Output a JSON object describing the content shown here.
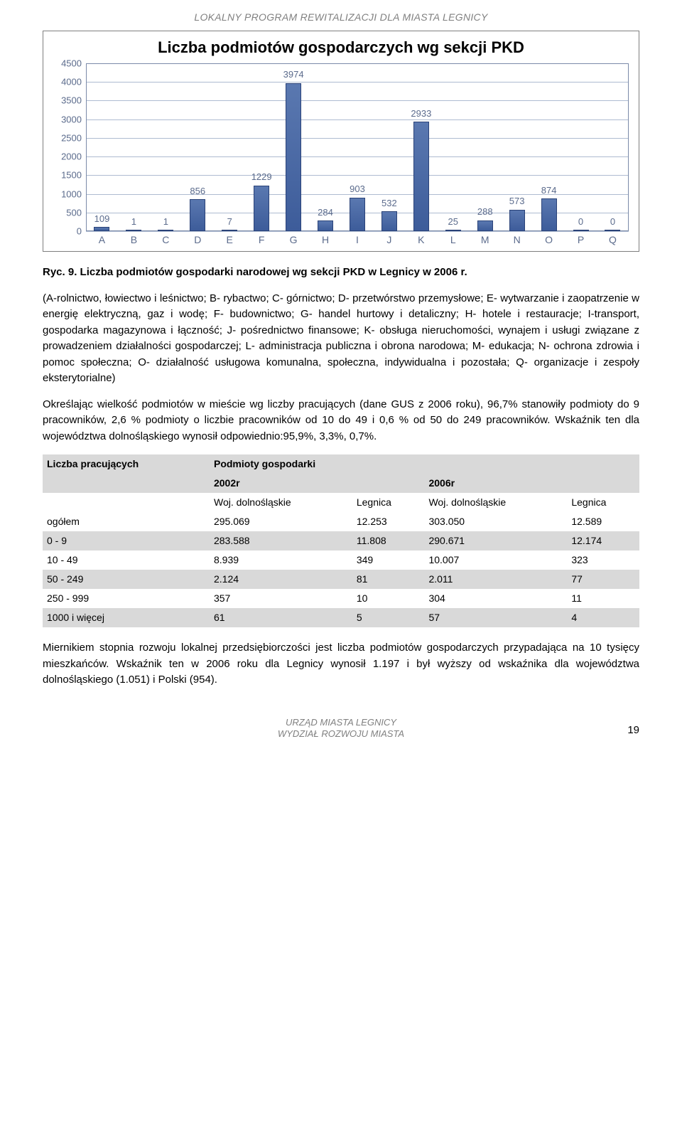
{
  "header": {
    "text": "LOKALNY PROGRAM REWITALIZACJI DLA MIASTA LEGNICY"
  },
  "chart": {
    "type": "bar",
    "title": "Liczba podmiotów gospodarczych wg sekcji PKD",
    "title_fontsize": 22,
    "categories": [
      "A",
      "B",
      "C",
      "D",
      "E",
      "F",
      "G",
      "H",
      "I",
      "J",
      "K",
      "L",
      "M",
      "N",
      "O",
      "P",
      "Q"
    ],
    "values": [
      109,
      1,
      1,
      856,
      7,
      1229,
      3974,
      284,
      903,
      532,
      2933,
      25,
      288,
      573,
      874,
      0,
      0
    ],
    "bar_color": "#3d5c9a",
    "bar_border": "#2a4278",
    "ymin": 0,
    "ymax": 4500,
    "ytick_step": 500,
    "yticks": [
      0,
      500,
      1000,
      1500,
      2000,
      2500,
      3000,
      3500,
      4000,
      4500
    ],
    "grid_color": "#aebbd1",
    "axis_label_color": "#5b6b8c",
    "axis_fontsize": 13,
    "background_color": "#ffffff"
  },
  "caption": "Ryc. 9. Liczba podmiotów gospodarki narodowej wg sekcji PKD w Legnicy w 2006 r.",
  "para1": "(A-rolnictwo, łowiectwo i leśnictwo; B- rybactwo; C- górnictwo; D- przetwórstwo przemysłowe; E- wytwarzanie i zaopatrzenie w energię elektryczną, gaz i wodę; F- budownictwo; G- handel hurtowy i detaliczny; H- hotele i restauracje; I-transport, gospodarka magazynowa i łączność; J- pośrednictwo finansowe; K- obsługa nieruchomości, wynajem i usługi związane z prowadzeniem działalności gospodarczej; L- administracja publiczna i obrona narodowa; M- edukacja; N- ochrona zdrowia i pomoc społeczna; O- działalność usługowa komunalna, społeczna, indywidualna i pozostała; Q- organizacje i zespoły eksterytorialne)",
  "para2": "Określając wielkość podmiotów w mieście wg liczby pracujących (dane GUS z 2006 roku), 96,7% stanowiły podmioty do 9 pracowników, 2,6 % podmioty o liczbie pracowników od 10 do 49 i 0,6 % od 50 do 249 pracowników. Wskaźnik ten dla województwa dolnośląskiego wynosił odpowiednio:95,9%, 3,3%, 0,7%.",
  "table": {
    "head": {
      "col1": "Liczba pracujących",
      "spanhead": "Podmioty gospodarki",
      "y1": "2002r",
      "y2": "2006r",
      "woj": "Woj. dolnośląskie",
      "leg": "Legnica"
    },
    "rows": [
      {
        "label": "ogółem",
        "a": "295.069",
        "b": "12.253",
        "c": "303.050",
        "d": "12.589",
        "grey": false
      },
      {
        "label": "0 - 9",
        "a": "283.588",
        "b": "11.808",
        "c": "290.671",
        "d": "12.174",
        "grey": true
      },
      {
        "label": "10 - 49",
        "a": "8.939",
        "b": "349",
        "c": "10.007",
        "d": "323",
        "grey": false
      },
      {
        "label": "50 - 249",
        "a": "2.124",
        "b": "81",
        "c": "2.011",
        "d": "77",
        "grey": true
      },
      {
        "label": "250 - 999",
        "a": "357",
        "b": "10",
        "c": "304",
        "d": "11",
        "grey": false
      },
      {
        "label": "1000 i więcej",
        "a": "61",
        "b": "5",
        "c": "57",
        "d": "4",
        "grey": true
      }
    ]
  },
  "para3": "Miernikiem stopnia rozwoju lokalnej przedsiębiorczości jest liczba podmiotów gospodarczych przypadająca na 10 tysięcy mieszkańców. Wskaźnik ten w 2006 roku dla Legnicy wynosił 1.197 i był wyższy od wskaźnika dla województwa dolnośląskiego (1.051) i Polski (954).",
  "footer": {
    "line1": "URZĄD MIASTA LEGNICY",
    "line2": "WYDZIAŁ ROZWOJU MIASTA",
    "page": "19"
  }
}
